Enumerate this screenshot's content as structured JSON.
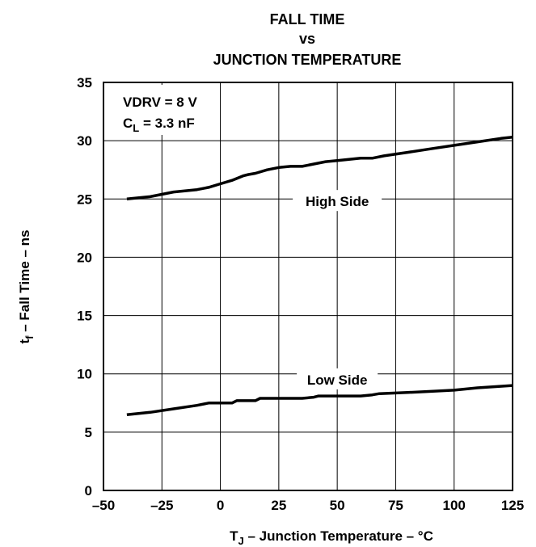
{
  "chart_data": {
    "type": "line",
    "title_lines": [
      "FALL TIME",
      "vs",
      "JUNCTION TEMPERATURE"
    ],
    "xlabel": {
      "main": "T",
      "sub": "J",
      "rest": " – Junction Temperature – °C"
    },
    "ylabel": {
      "main": "t",
      "sub": "f",
      "rest": " – Fall Time – ns"
    },
    "xlim": [
      -50,
      125
    ],
    "ylim": [
      0,
      35
    ],
    "xticks": [
      -50,
      -25,
      0,
      25,
      50,
      75,
      100,
      125
    ],
    "yticks": [
      0,
      5,
      10,
      15,
      20,
      25,
      30,
      35
    ],
    "xtick_labels": [
      "–50",
      "–25",
      "0",
      "25",
      "50",
      "75",
      "100",
      "125"
    ],
    "ytick_labels": [
      "0",
      "5",
      "10",
      "15",
      "20",
      "25",
      "30",
      "35"
    ],
    "grid": true,
    "conditions": [
      {
        "main": "VDRV = 8 V",
        "sub": "",
        "rest": ""
      },
      {
        "main": "C",
        "sub": "L",
        "rest": " = 3.3 nF"
      }
    ],
    "series": [
      {
        "name": "High Side",
        "x": [
          -40,
          -30,
          -20,
          -10,
          -5,
          0,
          5,
          10,
          12,
          15,
          20,
          25,
          30,
          35,
          40,
          45,
          50,
          55,
          60,
          65,
          70,
          80,
          90,
          100,
          110,
          120,
          125
        ],
        "y": [
          25.0,
          25.2,
          25.6,
          25.8,
          26.0,
          26.3,
          26.6,
          27.0,
          27.1,
          27.2,
          27.5,
          27.7,
          27.8,
          27.8,
          28.0,
          28.2,
          28.3,
          28.4,
          28.5,
          28.5,
          28.7,
          29.0,
          29.3,
          29.6,
          29.9,
          30.2,
          30.3
        ]
      },
      {
        "name": "Low Side",
        "x": [
          -40,
          -30,
          -20,
          -10,
          -5,
          5,
          7,
          10,
          15,
          17,
          20,
          30,
          35,
          40,
          42,
          50,
          60,
          65,
          68,
          80,
          90,
          100,
          110,
          125
        ],
        "y": [
          6.5,
          6.7,
          7.0,
          7.3,
          7.5,
          7.5,
          7.7,
          7.7,
          7.7,
          7.9,
          7.9,
          7.9,
          7.9,
          8.0,
          8.1,
          8.1,
          8.1,
          8.2,
          8.3,
          8.4,
          8.5,
          8.6,
          8.8,
          9.0
        ]
      }
    ],
    "annotations": [
      {
        "text": "High Side",
        "x": 50,
        "y": 24.8
      },
      {
        "text": "Low Side",
        "x": 50,
        "y": 9.5
      }
    ]
  }
}
